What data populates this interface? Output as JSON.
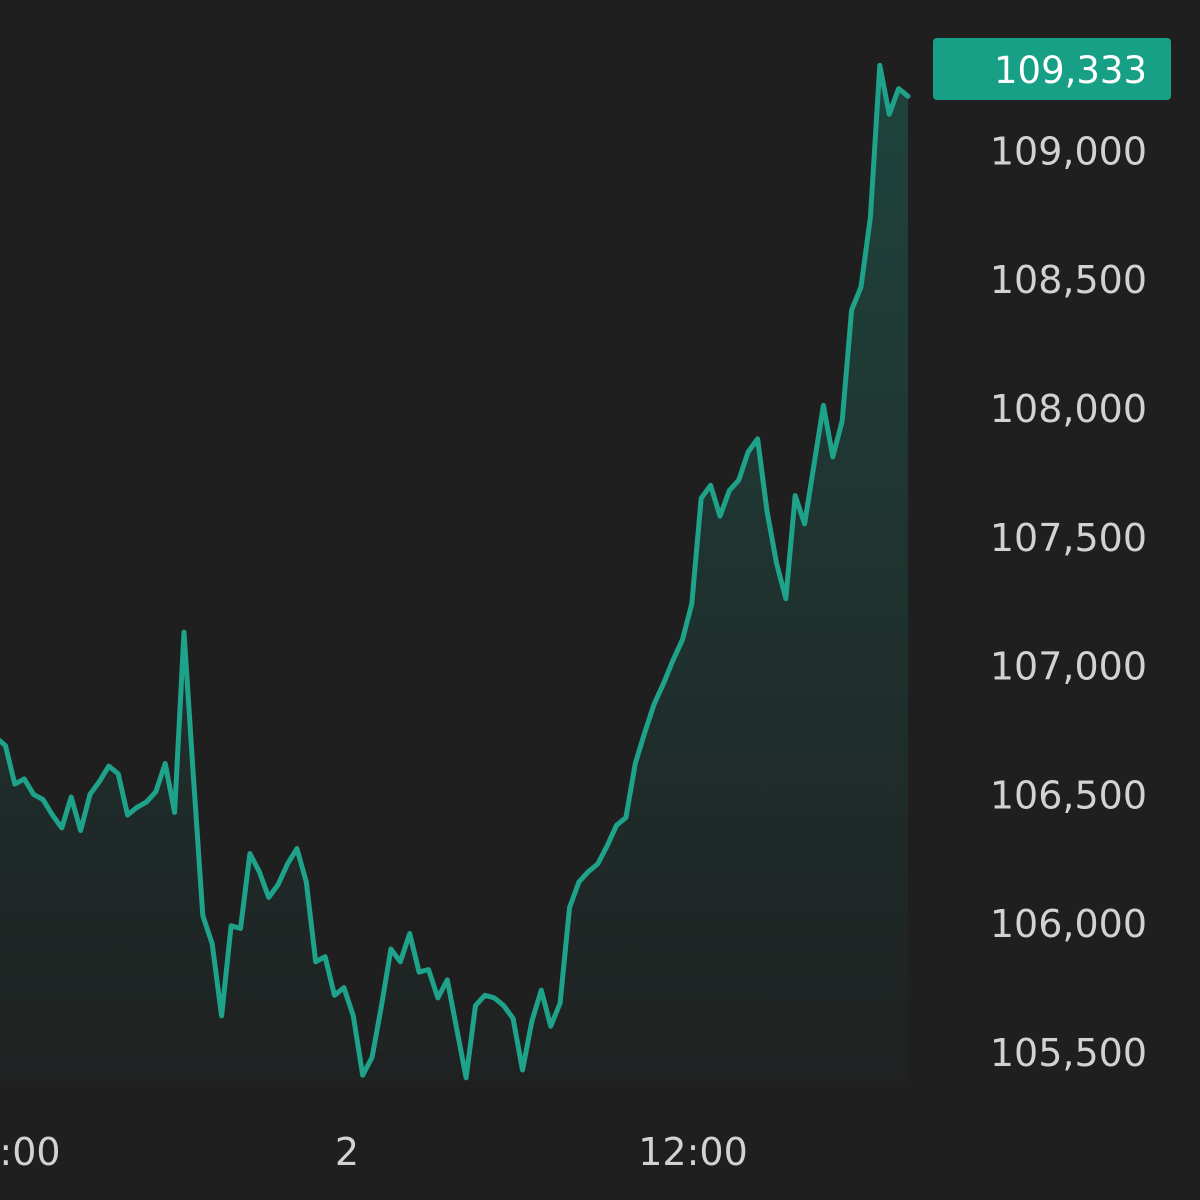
{
  "chart_data": {
    "type": "area",
    "title": "",
    "xlabel": "",
    "ylabel": "",
    "current_price_label": "109,333",
    "current_price": 109333,
    "ylim": [
      105300,
      109750
    ],
    "y_ticks": [
      109000,
      108500,
      108000,
      107500,
      107000,
      106500,
      106000,
      105500
    ],
    "y_tick_labels": [
      "109,000",
      "108,500",
      "108,000",
      "107,500",
      "107,000",
      "106,500",
      "106,000",
      "105,500"
    ],
    "x_tick_labels": [
      {
        "label": ":00",
        "t": 0.0
      },
      {
        "label": "2",
        "t": 0.383
      },
      {
        "label": "12:00",
        "t": 0.766
      }
    ],
    "grid": false,
    "legend": "none",
    "colors": {
      "background": "#1f1f1f",
      "line": "#1fa28a",
      "label_bg": "#17a086",
      "tick_text": "#d2d2d2"
    },
    "series": [
      {
        "values": [
          106720,
          106690,
          106540,
          106560,
          106500,
          106480,
          106420,
          106370,
          106490,
          106360,
          106500,
          106550,
          106610,
          106580,
          106420,
          106450,
          106470,
          106510,
          106620,
          106430,
          107130,
          106570,
          106030,
          105920,
          105640,
          105990,
          105980,
          106270,
          106200,
          106100,
          106150,
          106230,
          106290,
          106160,
          105850,
          105870,
          105720,
          105750,
          105640,
          105410,
          105480,
          105680,
          105900,
          105850,
          105960,
          105810,
          105820,
          105710,
          105780,
          105590,
          105400,
          105680,
          105720,
          105710,
          105680,
          105630,
          105430,
          105620,
          105740,
          105600,
          105690,
          106060,
          106160,
          106200,
          106230,
          106300,
          106380,
          106410,
          106620,
          106740,
          106850,
          106930,
          107020,
          107100,
          107240,
          107650,
          107700,
          107580,
          107680,
          107720,
          107830,
          107880,
          107600,
          107400,
          107260,
          107660,
          107550,
          107780,
          108010,
          107810,
          107950,
          108380,
          108470,
          108740,
          109330,
          109140,
          109240,
          109210
        ]
      }
    ]
  }
}
